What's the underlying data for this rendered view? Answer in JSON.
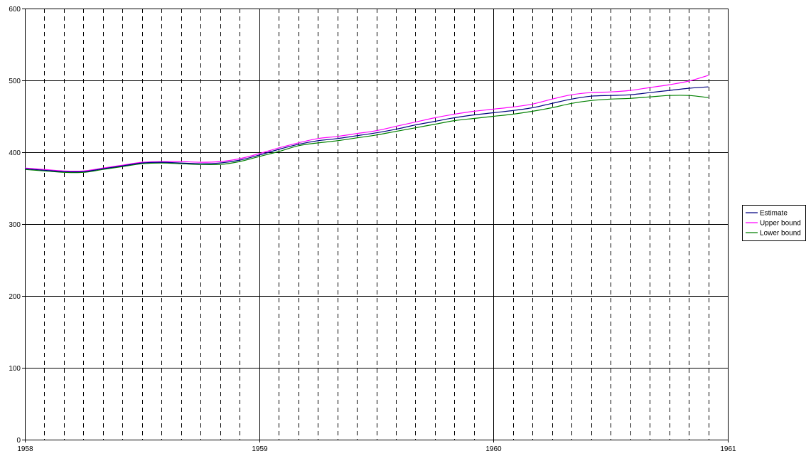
{
  "chart_data": {
    "type": "line",
    "title": "",
    "xlabel": "",
    "ylabel": "",
    "xlim": [
      1958,
      1961
    ],
    "ylim": [
      0,
      600
    ],
    "y_ticks": [
      0,
      100,
      200,
      300,
      400,
      500,
      600
    ],
    "x_major_ticks": [
      1958,
      1959,
      1960,
      1961
    ],
    "x_tick_labels": [
      "1958",
      "1959",
      "1960",
      "1961"
    ],
    "x_minor_ticks": [
      1958.0833,
      1958.1667,
      1958.25,
      1958.3333,
      1958.4167,
      1958.5,
      1958.5833,
      1958.6667,
      1958.75,
      1958.8333,
      1958.9167,
      1959.0833,
      1959.1667,
      1959.25,
      1959.3333,
      1959.4167,
      1959.5,
      1959.5833,
      1959.6667,
      1959.75,
      1959.8333,
      1959.9167,
      1960.0833,
      1960.1667,
      1960.25,
      1960.3333,
      1960.4167,
      1960.5,
      1960.5833,
      1960.6667,
      1960.75,
      1960.8333,
      1960.9167
    ],
    "grid": true,
    "legend_position": "right",
    "x": [
      1958.0,
      1958.0833,
      1958.1667,
      1958.25,
      1958.3333,
      1958.4167,
      1958.5,
      1958.5833,
      1958.6667,
      1958.75,
      1958.8333,
      1958.9167,
      1959.0,
      1959.0833,
      1959.1667,
      1959.25,
      1959.3333,
      1959.4167,
      1959.5,
      1959.5833,
      1959.6667,
      1959.75,
      1959.8333,
      1959.9167,
      1960.0,
      1960.0833,
      1960.1667,
      1960.25,
      1960.3333,
      1960.4167,
      1960.5,
      1960.5833,
      1960.6667,
      1960.75,
      1960.8333,
      1960.9167
    ],
    "series": [
      {
        "name": "Estimate",
        "color": "#000080",
        "values": [
          377,
          375,
          373,
          373,
          377,
          381,
          385,
          386,
          385,
          384,
          385,
          389,
          396,
          404,
          411,
          416,
          419,
          423,
          427,
          432,
          438,
          443,
          448,
          452,
          455,
          458,
          462,
          468,
          474,
          478,
          479,
          480,
          483,
          486,
          489,
          491
        ]
      },
      {
        "name": "Upper bound",
        "color": "#ff00ff",
        "values": [
          378,
          376,
          374,
          374,
          378,
          382,
          386,
          387,
          387,
          386,
          387,
          391,
          398,
          406,
          413,
          419,
          422,
          426,
          430,
          436,
          442,
          448,
          453,
          457,
          460,
          463,
          467,
          474,
          480,
          483,
          484,
          486,
          490,
          494,
          499,
          507
        ]
      },
      {
        "name": "Lower bound",
        "color": "#008000",
        "values": [
          376,
          374,
          372,
          372,
          376,
          380,
          384,
          385,
          384,
          383,
          383,
          387,
          394,
          401,
          409,
          413,
          416,
          420,
          424,
          429,
          434,
          439,
          444,
          447,
          450,
          453,
          457,
          462,
          468,
          472,
          474,
          475,
          477,
          479,
          479,
          476
        ]
      }
    ]
  }
}
